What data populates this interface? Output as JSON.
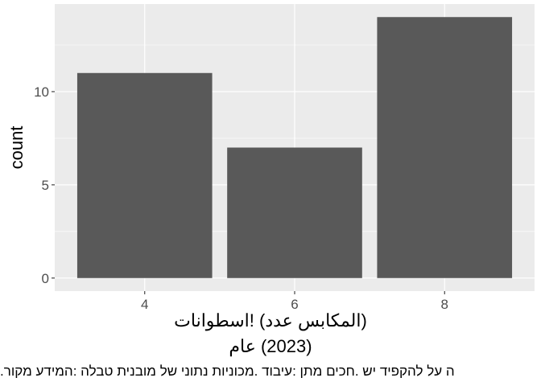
{
  "chart_data": {
    "type": "bar",
    "categories": [
      "4",
      "6",
      "8"
    ],
    "values": [
      11,
      7,
      14
    ],
    "ylabel": "count",
    "xlabel": "اسطوانات! (عدد المكابس)",
    "xlabel_line2": "عام (2023)",
    "caption": ".מקור המידע: טבלה מובנית של נתוני מכוניות. עיבוד: מתן חכים. יש להקפיד על ה",
    "yticks": [
      0,
      5,
      10
    ],
    "ylim": [
      0,
      14
    ],
    "grid": true,
    "colors": {
      "bar": "#595959",
      "panel": "#EBEBEB",
      "grid": "#FFFFFF",
      "tick_text": "#4D4D4D"
    }
  }
}
